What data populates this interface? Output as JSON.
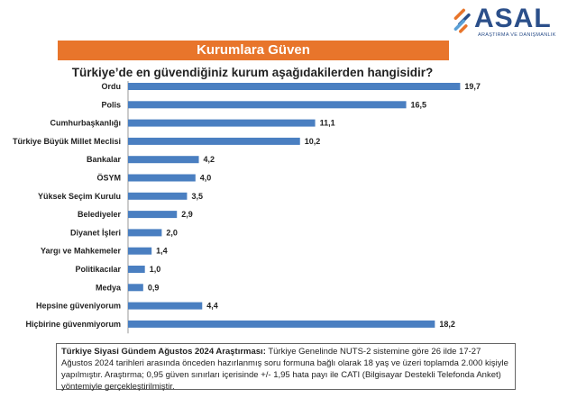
{
  "logo": {
    "name": "ASAL",
    "tagline": "ARAŞTIRMA VE DANIŞMANLIK",
    "colors": {
      "primary": "#2b4f8a",
      "accent": "#e8752b",
      "secondary": "#5aa0d6"
    }
  },
  "banner": {
    "title": "Kurumlara Güven",
    "color": "#e8752b"
  },
  "chart_data": {
    "type": "bar",
    "orientation": "horizontal",
    "title": "Türkiye’de en güvendiğiniz kurum aşağıdakilerden hangisidir?",
    "categories": [
      "Ordu",
      "Polis",
      "Cumhurbaşkanlığı",
      "Türkiye Büyük Millet Meclisi",
      "Bankalar",
      "ÖSYM",
      "Yüksek Seçim Kurulu",
      "Belediyeler",
      "Diyanet İşleri",
      "Yargı ve Mahkemeler",
      "Politikacılar",
      "Medya",
      "Hepsine güveniyorum",
      "Hiçbirine güvenmiyorum"
    ],
    "values": [
      19.7,
      16.5,
      11.1,
      10.2,
      4.2,
      4.0,
      3.5,
      2.9,
      2.0,
      1.4,
      1.0,
      0.9,
      4.4,
      18.2
    ],
    "labels": [
      "19,7",
      "16,5",
      "11,1",
      "10,2",
      "4,2",
      "4,0",
      "3,5",
      "2,9",
      "2,0",
      "1,4",
      "1,0",
      "0,9",
      "4,4",
      "18,2"
    ],
    "xlim": [
      0,
      20
    ],
    "bar_color": "#4a7fc1",
    "grid": false,
    "legend": "none"
  },
  "note": {
    "title": "Türkiye Siyasi Gündem Ağustos 2024 Araştırması:",
    "text": " Türkiye Genelinde NUTS-2 sistemine göre 26 ilde 17-27 Ağustos 2024 tarihleri arasında önceden hazırlanmış soru formuna bağlı olarak 18 yaş ve üzeri toplamda 2.000 kişiyle yapılmıştır. Araştırma; 0,95 güven sınırları içerisinde +/- 1,95 hata payı ile CATI (Bilgisayar Destekli Telefonda Anket) yöntemiyle gerçekleştirilmiştir."
  }
}
